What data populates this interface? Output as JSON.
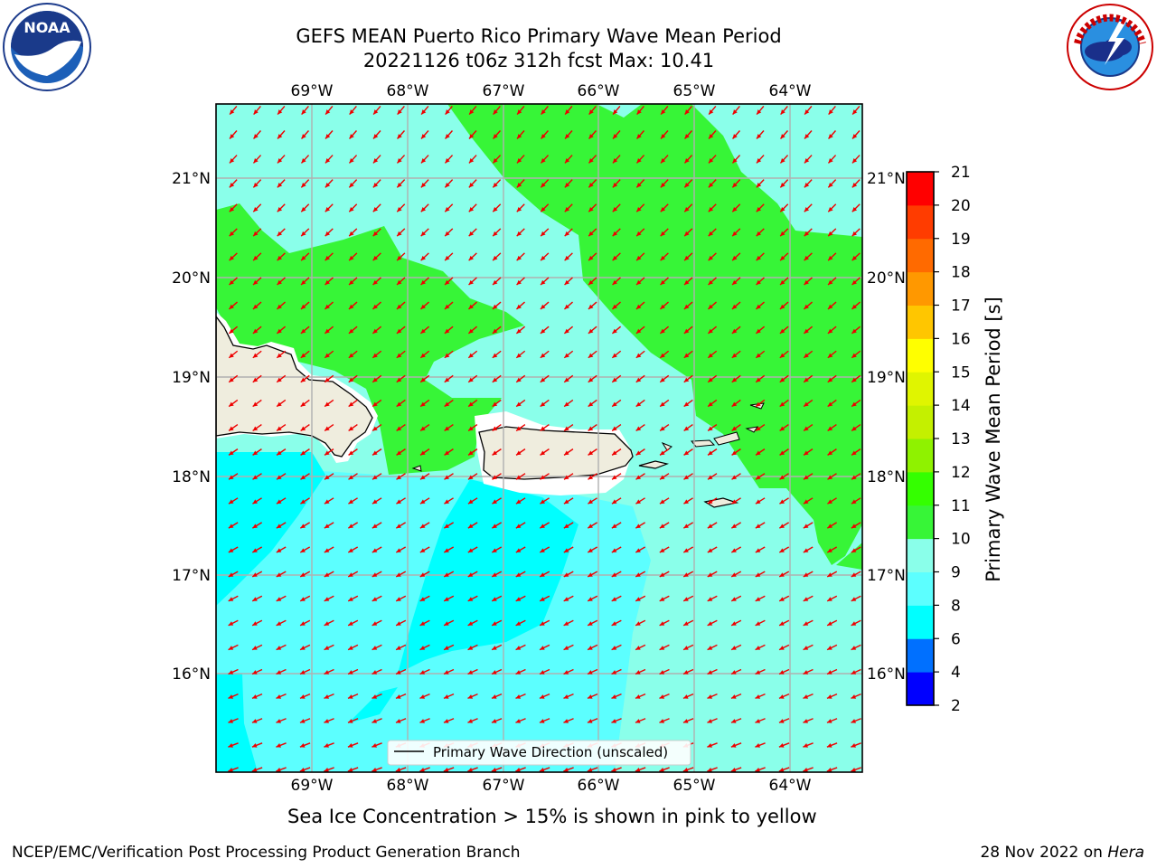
{
  "title": {
    "line1": "GEFS MEAN Puerto Rico Primary Wave Mean Period",
    "line2": "20221126 t06z 312h fcst   Max: 10.41"
  },
  "map": {
    "lon_ticks": [
      "69°W",
      "68°W",
      "67°W",
      "66°W",
      "65°W",
      "64°W"
    ],
    "lat_ticks": [
      "21°N",
      "20°N",
      "19°N",
      "18°N",
      "17°N",
      "16°N"
    ],
    "legend_label": "Primary Wave Direction (unscaled)",
    "arrow_color": "#ee0000",
    "land_color": "#efedde"
  },
  "colorbar": {
    "label": "Primary Wave Mean Period [s]",
    "ticks": [
      "2",
      "4",
      "6",
      "8",
      "9",
      "10",
      "11",
      "12",
      "13",
      "14",
      "15",
      "16",
      "17",
      "18",
      "19",
      "20",
      "21"
    ],
    "colors": [
      "#0000ff",
      "#0070ff",
      "#00ffff",
      "#5cffff",
      "#8affea",
      "#37f537",
      "#34ff00",
      "#8ff200",
      "#c4f000",
      "#e0f500",
      "#ffff00",
      "#ffc600",
      "#ff9800",
      "#ff6a00",
      "#ff3c00",
      "#ff0000"
    ]
  },
  "note": "Sea Ice Concentration > 15% is shown in pink to yellow",
  "footer": {
    "left": "NCEP/EMC/Verification Post Processing Product Generation Branch",
    "right_prefix": "28 Nov 2022 on ",
    "right_host": "Hera"
  },
  "logos": {
    "noaa": "NOAA",
    "nws_icon": "nws-logo"
  }
}
